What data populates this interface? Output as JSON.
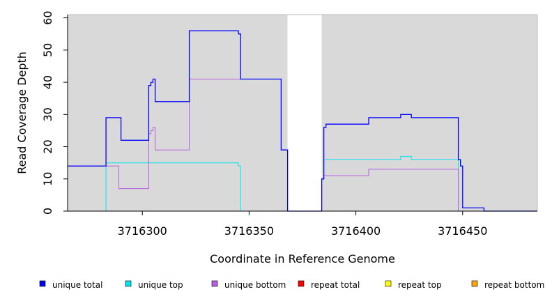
{
  "chart_data": {
    "type": "line",
    "xlabel": "Coordinate in Reference Genome",
    "ylabel": "Read Coverage Depth",
    "xlim": [
      3716265,
      3716485
    ],
    "ylim": [
      0,
      61
    ],
    "x_ticks": [
      3716300,
      3716350,
      3716400,
      3716450
    ],
    "y_ticks": [
      0,
      10,
      20,
      30,
      40,
      50,
      60
    ],
    "background": "#d9d9d9",
    "unshaded_band": [
      3716368,
      3716384
    ],
    "legend_position": "bottom",
    "series": [
      {
        "name": "unique total",
        "color": "#0000ff",
        "steps": [
          [
            3716265,
            14
          ],
          [
            3716283,
            29
          ],
          [
            3716290,
            22
          ],
          [
            3716303,
            39
          ],
          [
            3716304,
            40
          ],
          [
            3716305,
            41
          ],
          [
            3716306,
            34
          ],
          [
            3716322,
            56
          ],
          [
            3716345,
            55
          ],
          [
            3716346,
            41
          ],
          [
            3716365,
            19
          ],
          [
            3716368,
            0
          ],
          [
            3716384,
            10
          ],
          [
            3716385,
            26
          ],
          [
            3716386,
            27
          ],
          [
            3716406,
            29
          ],
          [
            3716421,
            30
          ],
          [
            3716426,
            29
          ],
          [
            3716448,
            16
          ],
          [
            3716449,
            14
          ],
          [
            3716450,
            1
          ],
          [
            3716460,
            0
          ],
          [
            3716485,
            0
          ]
        ]
      },
      {
        "name": "unique top",
        "color": "#00e5ee",
        "steps": [
          [
            3716265,
            0
          ],
          [
            3716283,
            15
          ],
          [
            3716345,
            14
          ],
          [
            3716346,
            0
          ],
          [
            3716384,
            10
          ],
          [
            3716385,
            16
          ],
          [
            3716421,
            17
          ],
          [
            3716426,
            16
          ],
          [
            3716448,
            0
          ],
          [
            3716485,
            0
          ]
        ]
      },
      {
        "name": "unique bottom",
        "color": "#b45ee0",
        "steps": [
          [
            3716265,
            14
          ],
          [
            3716289,
            7
          ],
          [
            3716303,
            24
          ],
          [
            3716304,
            25
          ],
          [
            3716305,
            26
          ],
          [
            3716306,
            19
          ],
          [
            3716322,
            41
          ],
          [
            3716365,
            19
          ],
          [
            3716368,
            0
          ],
          [
            3716384,
            10
          ],
          [
            3716385,
            11
          ],
          [
            3716406,
            13
          ],
          [
            3716448,
            0
          ],
          [
            3716485,
            0
          ]
        ]
      },
      {
        "name": "repeat total",
        "color": "#ff0000",
        "steps": [
          [
            3716265,
            0
          ],
          [
            3716485,
            0
          ]
        ]
      },
      {
        "name": "repeat top",
        "color": "#ffff00",
        "steps": [
          [
            3716265,
            0
          ],
          [
            3716485,
            0
          ]
        ]
      },
      {
        "name": "repeat bottom",
        "color": "#ffa500",
        "steps": [
          [
            3716265,
            0
          ],
          [
            3716485,
            0
          ]
        ]
      }
    ]
  }
}
